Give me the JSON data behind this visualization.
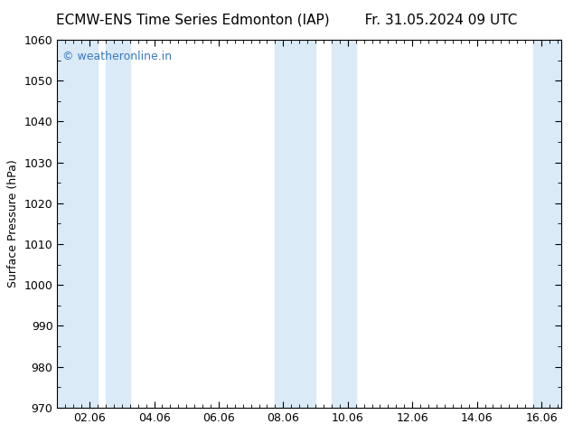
{
  "title_left": "ECMW-ENS Time Series Edmonton (IAP)",
  "title_right": "Fr. 31.05.2024 09 UTC",
  "ylabel": "Surface Pressure (hPa)",
  "ylim": [
    970,
    1060
  ],
  "yticks": [
    970,
    980,
    990,
    1000,
    1010,
    1020,
    1030,
    1040,
    1050,
    1060
  ],
  "xtick_labels": [
    "02.06",
    "04.06",
    "06.06",
    "08.06",
    "10.06",
    "12.06",
    "14.06",
    "16.06"
  ],
  "xtick_positions_hours": [
    24,
    72,
    120,
    168,
    216,
    264,
    312,
    360
  ],
  "xlim": [
    0,
    375
  ],
  "background_color": "#ffffff",
  "plot_bg_color": "#ffffff",
  "shaded_bands_hours": [
    {
      "x_start": 0,
      "x_end": 30,
      "color": "#daeaf6"
    },
    {
      "x_start": 36,
      "x_end": 54,
      "color": "#daeaf6"
    },
    {
      "x_start": 162,
      "x_end": 192,
      "color": "#daeaf6"
    },
    {
      "x_start": 204,
      "x_end": 222,
      "color": "#daeaf6"
    },
    {
      "x_start": 354,
      "x_end": 375,
      "color": "#daeaf6"
    }
  ],
  "watermark_text": "© weatheronline.in",
  "watermark_color": "#3a7abf",
  "watermark_fontsize": 9,
  "title_fontsize": 11,
  "label_fontsize": 9,
  "tick_fontsize": 9,
  "minor_xtick_interval": 6,
  "minor_ytick_interval": 5
}
